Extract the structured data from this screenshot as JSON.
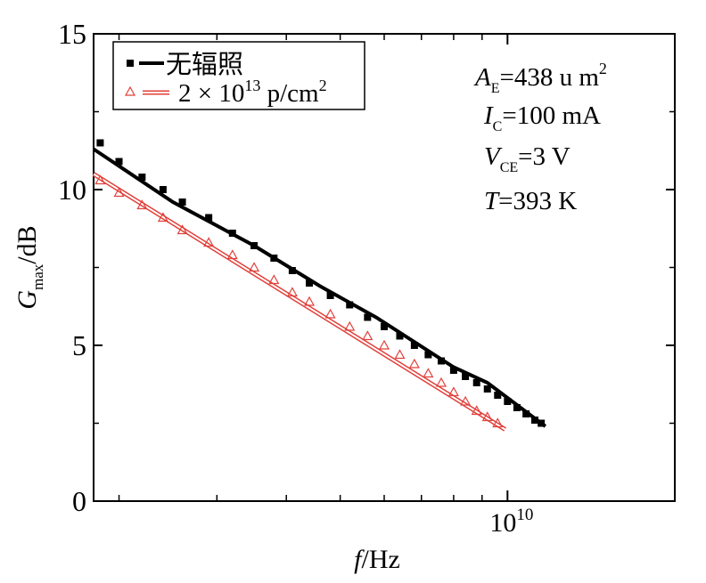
{
  "chart_data": {
    "type": "line",
    "x_scale": "log",
    "xlim": [
      1800000000.0,
      20000000000.0
    ],
    "ylim": [
      0,
      15
    ],
    "y_ticks": [
      {
        "value": 0,
        "label": "0"
      },
      {
        "value": 5,
        "label": "5"
      },
      {
        "value": 10,
        "label": "10"
      },
      {
        "value": 15,
        "label": "15"
      }
    ],
    "x_tick_labels": [
      {
        "value": 10000000000.0,
        "base": "10",
        "exp": "10"
      }
    ],
    "x_minor_ticks": [
      2000000000.0,
      3000000000.0,
      4000000000.0,
      5000000000.0,
      6000000000.0,
      7000000000.0,
      8000000000.0,
      9000000000.0,
      20000000000.0
    ],
    "xlabel": {
      "italic": "f",
      "rest": "/Hz"
    },
    "ylabel": {
      "italic": "G",
      "sub": "max",
      "rest": "/dB"
    },
    "grid": false,
    "legend_position": "top-left",
    "legend": [
      {
        "label": "无辐照",
        "color": "#000000",
        "marker": "square"
      },
      {
        "label_parts": [
          "2 × 10",
          "13",
          " p/cm",
          "2"
        ],
        "color": "#e0403a",
        "marker": "triangle-open"
      }
    ],
    "annotations": [
      {
        "italic": "A",
        "sub": "E",
        "rest": "=438 u m",
        "sup": "2"
      },
      {
        "italic": "I",
        "sub": "C",
        "rest": "=100 mA"
      },
      {
        "italic": "V",
        "sub": "CE",
        "rest": "=3 V"
      },
      {
        "italic": "T",
        "sub": "",
        "rest": "=393 K"
      }
    ],
    "series": [
      {
        "name": "无辐照",
        "color": "#000000",
        "marker": "square",
        "line_points": {
          "x": [
            1800000000.0,
            2500000000.0,
            3500000000.0,
            4600000000.0,
            5800000000.0,
            8000000000.0,
            9200000000.0,
            11700000000.0
          ],
          "y": [
            11.3,
            9.6,
            8.2,
            6.9,
            5.9,
            4.3,
            3.8,
            2.4
          ]
        },
        "markers": {
          "x": [
            1850000000.0,
            2000000000.0,
            2200000000.0,
            2400000000.0,
            2600000000.0,
            2900000000.0,
            3200000000.0,
            3500000000.0,
            3800000000.0,
            4100000000.0,
            4400000000.0,
            4800000000.0,
            5200000000.0,
            5600000000.0,
            6000000000.0,
            6400000000.0,
            6800000000.0,
            7200000000.0,
            7600000000.0,
            8000000000.0,
            8400000000.0,
            8800000000.0,
            9200000000.0,
            9600000000.0,
            10000000000.0,
            10400000000.0,
            10800000000.0,
            11200000000.0,
            11500000000.0
          ],
          "y": [
            11.5,
            10.9,
            10.4,
            10.0,
            9.6,
            9.1,
            8.6,
            8.2,
            7.8,
            7.4,
            7.0,
            6.6,
            6.3,
            5.9,
            5.6,
            5.3,
            5.0,
            4.7,
            4.5,
            4.2,
            4.0,
            3.8,
            3.6,
            3.4,
            3.2,
            3.0,
            2.8,
            2.6,
            2.5
          ]
        }
      },
      {
        "name": "2 × 10^13 p/cm^2",
        "color": "#e0403a",
        "marker": "triangle-open",
        "line_points": {
          "x": [
            1800000000.0,
            9900000000.0
          ],
          "y": [
            10.5,
            2.3
          ]
        },
        "markers": {
          "x": [
            1850000000.0,
            2000000000.0,
            2200000000.0,
            2400000000.0,
            2600000000.0,
            2900000000.0,
            3200000000.0,
            3500000000.0,
            3800000000.0,
            4100000000.0,
            4400000000.0,
            4800000000.0,
            5200000000.0,
            5600000000.0,
            6000000000.0,
            6400000000.0,
            6800000000.0,
            7200000000.0,
            7600000000.0,
            8000000000.0,
            8400000000.0,
            8800000000.0,
            9200000000.0,
            9600000000.0
          ],
          "y": [
            10.3,
            9.9,
            9.5,
            9.1,
            8.7,
            8.3,
            7.9,
            7.5,
            7.1,
            6.7,
            6.4,
            6.0,
            5.6,
            5.3,
            5.0,
            4.7,
            4.4,
            4.1,
            3.8,
            3.5,
            3.2,
            2.9,
            2.7,
            2.5
          ]
        }
      }
    ]
  }
}
